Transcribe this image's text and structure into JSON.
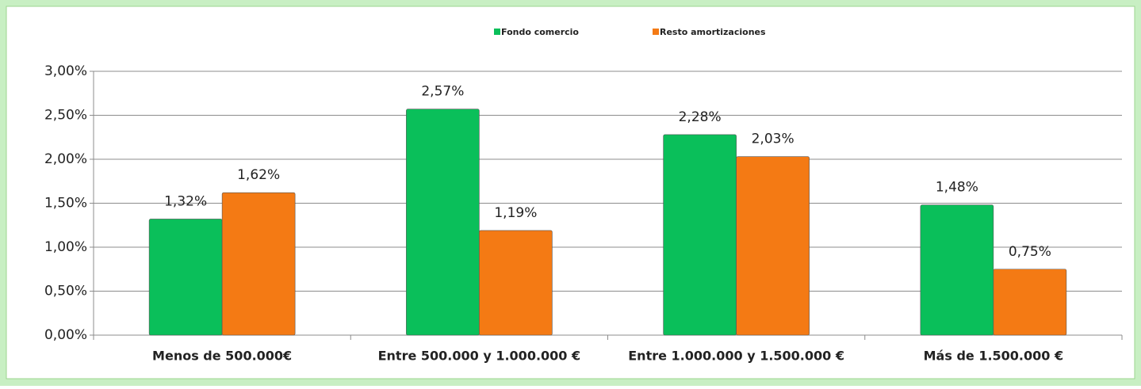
{
  "chart_data": {
    "type": "bar",
    "categories": [
      "Menos de 500.000€",
      "Entre 500.000  y 1.000.000  €",
      "Entre 1.000.000  y 1.500.000  €",
      "Más de 1.500.000  €"
    ],
    "series": [
      {
        "name": "Fondo comercio",
        "color": "#0abf5a",
        "values": [
          1.32,
          2.57,
          2.28,
          1.48
        ],
        "value_labels": [
          "1,32%",
          "2,57%",
          "2,28%",
          "1,48%"
        ]
      },
      {
        "name": "Resto amortizaciones",
        "color": "#f47a14",
        "values": [
          1.62,
          1.19,
          2.03,
          0.75
        ],
        "value_labels": [
          "1,62%",
          "1,19%",
          "2,03%",
          "0,75%"
        ]
      }
    ],
    "ylim": [
      0,
      3
    ],
    "yticks": [
      {
        "value": 0,
        "label": "0,00%"
      },
      {
        "value": 0.5,
        "label": "0,50%"
      },
      {
        "value": 1,
        "label": "1,00%"
      },
      {
        "value": 1.5,
        "label": "1,50%"
      },
      {
        "value": 2,
        "label": "2,00%"
      },
      {
        "value": 2.5,
        "label": "2,50%"
      },
      {
        "value": 3,
        "label": "3,00%"
      }
    ],
    "grid": true,
    "legend": "top"
  }
}
